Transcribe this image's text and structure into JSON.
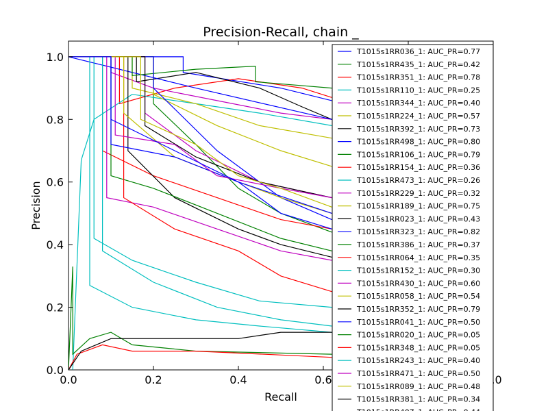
{
  "chart_data": {
    "type": "line",
    "title": "Precision-Recall, chain _",
    "xlabel": "Recall",
    "ylabel": "Precision",
    "xlim": [
      0,
      1
    ],
    "ylim": [
      0,
      1.05
    ],
    "xticks": [
      {
        "value": 0.0,
        "label": "0.0"
      },
      {
        "value": 0.2,
        "label": "0.2"
      },
      {
        "value": 0.4,
        "label": "0.4"
      },
      {
        "value": 0.6,
        "label": "0.6"
      },
      {
        "value": 0.8,
        "label": "0.8"
      },
      {
        "value": 1.0,
        "label": "1.0"
      }
    ],
    "yticks": [
      {
        "value": 0.0,
        "label": "0.0"
      },
      {
        "value": 0.2,
        "label": "0.2"
      },
      {
        "value": 0.4,
        "label": "0.4"
      },
      {
        "value": 0.6,
        "label": "0.6"
      },
      {
        "value": 0.8,
        "label": "0.8"
      },
      {
        "value": 1.0,
        "label": "1.0"
      }
    ],
    "legend_position": "top-right",
    "series": [
      {
        "name": "T1015s1RR036_1: AUC_PR=0.77",
        "color": "#0000ff",
        "points": [
          [
            0,
            1.0
          ],
          [
            0.27,
            1.0
          ],
          [
            0.27,
            0.95
          ],
          [
            0.5,
            0.9
          ],
          [
            0.62,
            0.86
          ]
        ]
      },
      {
        "name": "T1015s1RR435_1: AUC_PR=0.42",
        "color": "#008000",
        "points": [
          [
            0,
            1.0
          ],
          [
            0.2,
            1.0
          ],
          [
            0.2,
            0.85
          ],
          [
            0.3,
            0.72
          ],
          [
            0.4,
            0.58
          ],
          [
            0.5,
            0.5
          ],
          [
            0.62,
            0.44
          ]
        ]
      },
      {
        "name": "T1015s1RR351_1: AUC_PR=0.78",
        "color": "#ff0000",
        "points": [
          [
            0,
            1.0
          ],
          [
            0.12,
            1.0
          ],
          [
            0.12,
            0.85
          ],
          [
            0.25,
            0.9
          ],
          [
            0.4,
            0.93
          ],
          [
            0.55,
            0.9
          ],
          [
            0.62,
            0.87
          ]
        ]
      },
      {
        "name": "T1015s1RR110_1: AUC_PR=0.25",
        "color": "#00bfbf",
        "points": [
          [
            0.01,
            0.0
          ],
          [
            0.03,
            0.67
          ],
          [
            0.06,
            0.8
          ],
          [
            0.15,
            0.88
          ],
          [
            0.3,
            0.85
          ],
          [
            0.45,
            0.82
          ],
          [
            0.62,
            0.78
          ]
        ]
      },
      {
        "name": "T1015s1RR344_1: AUC_PR=0.40",
        "color": "#bf00bf",
        "points": [
          [
            0,
            1.0
          ],
          [
            0.1,
            1.0
          ],
          [
            0.1,
            0.95
          ],
          [
            0.2,
            0.9
          ],
          [
            0.35,
            0.86
          ],
          [
            0.5,
            0.82
          ],
          [
            0.62,
            0.8
          ]
        ]
      },
      {
        "name": "T1015s1RR224_1: AUC_PR=0.57",
        "color": "#bfbf00",
        "points": [
          [
            0,
            1.0
          ],
          [
            0.15,
            1.0
          ],
          [
            0.15,
            0.9
          ],
          [
            0.3,
            0.85
          ],
          [
            0.45,
            0.78
          ],
          [
            0.62,
            0.74
          ]
        ]
      },
      {
        "name": "T1015s1RR392_1: AUC_PR=0.73",
        "color": "#000000",
        "points": [
          [
            0,
            1.0
          ],
          [
            0.16,
            1.0
          ],
          [
            0.16,
            0.92
          ],
          [
            0.3,
            0.95
          ],
          [
            0.45,
            0.9
          ],
          [
            0.55,
            0.84
          ],
          [
            0.62,
            0.8
          ]
        ]
      },
      {
        "name": "T1015s1RR498_1: AUC_PR=0.80",
        "color": "#0000ff",
        "points": [
          [
            0,
            1.0
          ],
          [
            0.3,
            0.9
          ],
          [
            0.62,
            0.8
          ]
        ]
      },
      {
        "name": "T1015s1RR106_1: AUC_PR=0.79",
        "color": "#008000",
        "points": [
          [
            0,
            1.0
          ],
          [
            0.15,
            1.0
          ],
          [
            0.15,
            0.94
          ],
          [
            0.3,
            0.96
          ],
          [
            0.44,
            0.97
          ],
          [
            0.44,
            0.92
          ],
          [
            0.62,
            0.9
          ]
        ]
      },
      {
        "name": "T1015s1RR154_1: AUC_PR=0.36",
        "color": "#ff0000",
        "points": [
          [
            0,
            1.0
          ],
          [
            0.08,
            1.0
          ],
          [
            0.08,
            0.7
          ],
          [
            0.2,
            0.62
          ],
          [
            0.35,
            0.55
          ],
          [
            0.5,
            0.48
          ],
          [
            0.62,
            0.45
          ]
        ]
      },
      {
        "name": "T1015s1RR473_1: AUC_PR=0.26",
        "color": "#00bfbf",
        "points": [
          [
            0,
            1.0
          ],
          [
            0.06,
            1.0
          ],
          [
            0.06,
            0.42
          ],
          [
            0.15,
            0.35
          ],
          [
            0.3,
            0.28
          ],
          [
            0.45,
            0.22
          ],
          [
            0.62,
            0.2
          ]
        ]
      },
      {
        "name": "T1015s1RR229_1: AUC_PR=0.32",
        "color": "#bf00bf",
        "points": [
          [
            0,
            1.0
          ],
          [
            0.09,
            1.0
          ],
          [
            0.09,
            0.55
          ],
          [
            0.2,
            0.52
          ],
          [
            0.35,
            0.45
          ],
          [
            0.5,
            0.38
          ],
          [
            0.62,
            0.35
          ]
        ]
      },
      {
        "name": "T1015s1RR189_1: AUC_PR=0.75",
        "color": "#bfbf00",
        "points": [
          [
            0,
            1.0
          ],
          [
            0.2,
            1.0
          ],
          [
            0.2,
            0.88
          ],
          [
            0.35,
            0.78
          ],
          [
            0.5,
            0.7
          ],
          [
            0.62,
            0.65
          ]
        ]
      },
      {
        "name": "T1015s1RR023_1: AUC_PR=0.43",
        "color": "#000000",
        "points": [
          [
            0,
            1.0
          ],
          [
            0.14,
            1.0
          ],
          [
            0.14,
            0.7
          ],
          [
            0.25,
            0.55
          ],
          [
            0.4,
            0.45
          ],
          [
            0.5,
            0.4
          ],
          [
            0.62,
            0.36
          ]
        ]
      },
      {
        "name": "T1015s1RR323_1: AUC_PR=0.82",
        "color": "#0000ff",
        "points": [
          [
            0,
            1.0
          ],
          [
            0.2,
            1.0
          ],
          [
            0.2,
            0.9
          ],
          [
            0.35,
            0.7
          ],
          [
            0.5,
            0.55
          ],
          [
            0.62,
            0.48
          ]
        ]
      },
      {
        "name": "T1015s1RR386_1: AUC_PR=0.37",
        "color": "#008000",
        "points": [
          [
            0,
            1.0
          ],
          [
            0.1,
            1.0
          ],
          [
            0.1,
            0.62
          ],
          [
            0.2,
            0.58
          ],
          [
            0.35,
            0.5
          ],
          [
            0.5,
            0.42
          ],
          [
            0.62,
            0.38
          ]
        ]
      },
      {
        "name": "T1015s1RR064_1: AUC_PR=0.35",
        "color": "#ff0000",
        "points": [
          [
            0,
            1.0
          ],
          [
            0.13,
            1.0
          ],
          [
            0.13,
            0.55
          ],
          [
            0.25,
            0.45
          ],
          [
            0.4,
            0.38
          ],
          [
            0.5,
            0.3
          ],
          [
            0.62,
            0.25
          ]
        ]
      },
      {
        "name": "T1015s1RR152_1: AUC_PR=0.30",
        "color": "#00bfbf",
        "points": [
          [
            0,
            1.0
          ],
          [
            0.08,
            1.0
          ],
          [
            0.08,
            0.38
          ],
          [
            0.2,
            0.28
          ],
          [
            0.35,
            0.2
          ],
          [
            0.5,
            0.16
          ],
          [
            0.62,
            0.14
          ]
        ]
      },
      {
        "name": "T1015s1RR430_1: AUC_PR=0.60",
        "color": "#bf00bf",
        "points": [
          [
            0,
            1.0
          ],
          [
            0.18,
            1.0
          ],
          [
            0.18,
            0.82
          ],
          [
            0.3,
            0.7
          ],
          [
            0.45,
            0.6
          ],
          [
            0.62,
            0.55
          ]
        ]
      },
      {
        "name": "T1015s1RR058_1: AUC_PR=0.54",
        "color": "#bfbf00",
        "points": [
          [
            0,
            1.0
          ],
          [
            0.13,
            1.0
          ],
          [
            0.13,
            0.82
          ],
          [
            0.25,
            0.68
          ],
          [
            0.4,
            0.6
          ],
          [
            0.5,
            0.55
          ],
          [
            0.62,
            0.5
          ]
        ]
      },
      {
        "name": "T1015s1RR352_1: AUC_PR=0.79",
        "color": "#000000",
        "points": [
          [
            0,
            1.0
          ],
          [
            0.18,
            1.0
          ],
          [
            0.18,
            0.78
          ],
          [
            0.3,
            0.68
          ],
          [
            0.45,
            0.6
          ],
          [
            0.62,
            0.55
          ]
        ]
      },
      {
        "name": "T1015s1RR041_1: AUC_PR=0.50",
        "color": "#0000ff",
        "points": [
          [
            0,
            1.0
          ],
          [
            0.1,
            1.0
          ],
          [
            0.1,
            0.72
          ],
          [
            0.25,
            0.68
          ],
          [
            0.4,
            0.6
          ],
          [
            0.5,
            0.5
          ],
          [
            0.62,
            0.45
          ]
        ]
      },
      {
        "name": "T1015s1RR020_1: AUC_PR=0.05",
        "color": "#008000",
        "points": [
          [
            0,
            0.0
          ],
          [
            0.01,
            0.33
          ],
          [
            0.01,
            0.05
          ],
          [
            0.05,
            0.1
          ],
          [
            0.1,
            0.12
          ],
          [
            0.15,
            0.08
          ],
          [
            0.3,
            0.06
          ],
          [
            0.62,
            0.05
          ]
        ]
      },
      {
        "name": "T1015s1RR348_1: AUC_PR=0.05",
        "color": "#ff0000",
        "points": [
          [
            0,
            0.0
          ],
          [
            0.02,
            0.05
          ],
          [
            0.08,
            0.08
          ],
          [
            0.15,
            0.06
          ],
          [
            0.3,
            0.06
          ],
          [
            0.62,
            0.04
          ]
        ]
      },
      {
        "name": "T1015s1RR243_1: AUC_PR=0.40",
        "color": "#00bfbf",
        "points": [
          [
            0,
            1.0
          ],
          [
            0.05,
            1.0
          ],
          [
            0.05,
            0.27
          ],
          [
            0.15,
            0.2
          ],
          [
            0.3,
            0.16
          ],
          [
            0.45,
            0.14
          ],
          [
            0.62,
            0.12
          ]
        ]
      },
      {
        "name": "T1015s1RR471_1: AUC_PR=0.50",
        "color": "#bf00bf",
        "points": [
          [
            0,
            1.0
          ],
          [
            0.11,
            1.0
          ],
          [
            0.11,
            0.75
          ],
          [
            0.25,
            0.72
          ],
          [
            0.35,
            0.62
          ],
          [
            0.5,
            0.58
          ],
          [
            0.62,
            0.55
          ]
        ]
      },
      {
        "name": "T1015s1RR089_1: AUC_PR=0.48",
        "color": "#bfbf00",
        "points": [
          [
            0,
            1.0
          ],
          [
            0.17,
            1.0
          ],
          [
            0.17,
            0.8
          ],
          [
            0.3,
            0.72
          ],
          [
            0.4,
            0.62
          ],
          [
            0.5,
            0.58
          ],
          [
            0.62,
            0.52
          ]
        ]
      },
      {
        "name": "T1015s1RR381_1: AUC_PR=0.34",
        "color": "#000000",
        "points": [
          [
            0,
            0.0
          ],
          [
            0.03,
            0.06
          ],
          [
            0.1,
            0.1
          ],
          [
            0.25,
            0.1
          ],
          [
            0.4,
            0.1
          ],
          [
            0.5,
            0.12
          ],
          [
            0.62,
            0.12
          ]
        ]
      },
      {
        "name": "T1015s1RR407_1: AUC_PR=0.44",
        "color": "#0000ff",
        "points": [
          [
            0,
            1.0
          ],
          [
            0.1,
            1.0
          ],
          [
            0.1,
            0.8
          ],
          [
            0.25,
            0.7
          ],
          [
            0.4,
            0.6
          ],
          [
            0.62,
            0.5
          ]
        ]
      }
    ]
  }
}
